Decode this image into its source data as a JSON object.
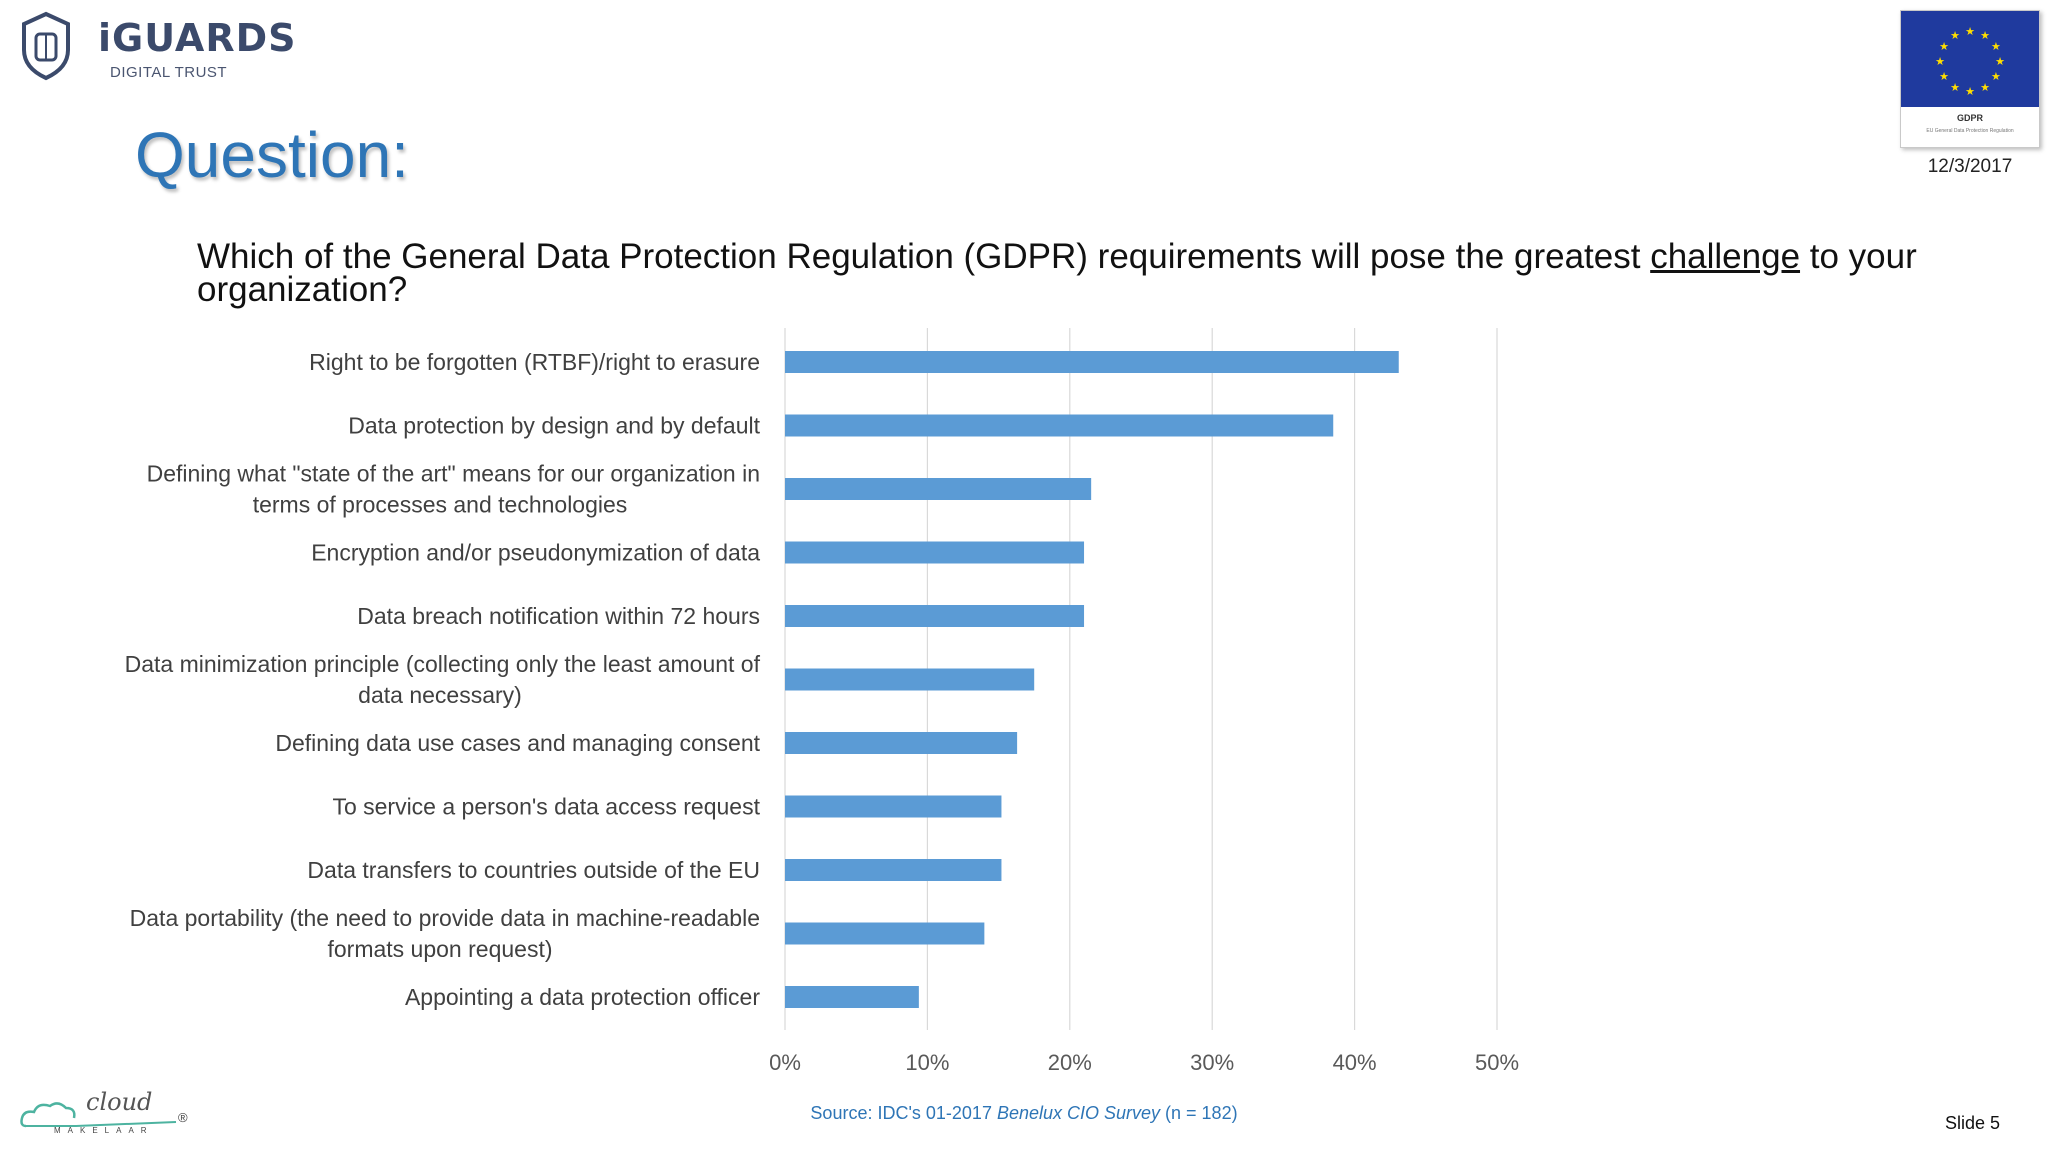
{
  "header": {
    "brand": "iGUARDS",
    "brand_sub": "DIGITAL TRUST",
    "title": "Question:",
    "date": "12/3/2017",
    "badge_title": "GDPR",
    "badge_sub": "EU General Data Protection Regulation"
  },
  "question": {
    "before": "Which of the General Data Protection Regulation (GDPR) requirements will pose the greatest ",
    "emphasis": "challenge",
    "after": " to your organization?"
  },
  "chart_data": {
    "type": "bar",
    "orientation": "horizontal",
    "categories": [
      "Right to be forgotten (RTBF)/right to erasure",
      "Data protection by design and by default",
      "Defining what \"state of the art\" means for our organization in terms of processes and technologies",
      "Encryption and/or pseudonymization of data",
      "Data breach notification within 72 hours",
      "Data minimization principle (collecting only the least amount of data necessary)",
      "Defining data use cases and managing consent",
      "To service a person's data access request",
      "Data transfers to countries outside of the EU",
      "Data portability (the need to provide data in machine-readable formats upon request)",
      "Appointing a data protection officer"
    ],
    "category_lines": [
      [
        "Right to be forgotten (RTBF)/right to erasure"
      ],
      [
        "Data protection by design and by default"
      ],
      [
        "Defining what \"state of the art\" means for our organization in",
        "terms of processes and technologies"
      ],
      [
        "Encryption and/or pseudonymization of data"
      ],
      [
        "Data breach notification within 72 hours"
      ],
      [
        "Data minimization principle (collecting only the least amount of",
        "data necessary)"
      ],
      [
        "Defining data use cases and managing consent"
      ],
      [
        "To service a person's data access request"
      ],
      [
        "Data transfers to countries outside of the EU"
      ],
      [
        "Data portability (the need to provide data in machine-readable",
        "formats upon request)"
      ],
      [
        "Appointing a data protection officer"
      ]
    ],
    "values": [
      43.1,
      38.5,
      21.5,
      21.0,
      21.0,
      17.5,
      16.3,
      15.2,
      15.2,
      14.0,
      9.4
    ],
    "xlim": [
      0,
      50
    ],
    "xticks": [
      0,
      10,
      20,
      30,
      40,
      50
    ],
    "tick_suffix": "%",
    "grid": true,
    "bar_color": "#5b9bd5",
    "grid_color": "#d9d9d9"
  },
  "footer": {
    "source_prefix": "Source: IDC's 01-2017 ",
    "source_italic": "Benelux CIO Survey",
    "source_suffix": " (n = 182)",
    "slide": "Slide 5",
    "partner_word": "cloud",
    "partner_sub": "MAKELAAR",
    "partner_mark": "®"
  }
}
